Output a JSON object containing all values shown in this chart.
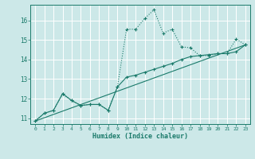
{
  "title": "",
  "xlabel": "Humidex (Indice chaleur)",
  "bg_color": "#cce8e8",
  "grid_color": "#ffffff",
  "line_color": "#1a7a6a",
  "xlim": [
    -0.5,
    23.5
  ],
  "ylim": [
    10.7,
    16.8
  ],
  "xticks": [
    0,
    1,
    2,
    3,
    4,
    5,
    6,
    7,
    8,
    9,
    10,
    11,
    12,
    13,
    14,
    15,
    16,
    17,
    18,
    19,
    20,
    21,
    22,
    23
  ],
  "yticks": [
    11,
    12,
    13,
    14,
    15,
    16
  ],
  "line1_x": [
    0,
    1,
    2,
    3,
    4,
    5,
    6,
    7,
    8,
    9,
    10,
    11,
    12,
    13,
    14,
    15,
    16,
    17,
    18,
    19,
    20,
    21,
    22,
    23
  ],
  "line1_y": [
    10.85,
    11.25,
    11.4,
    12.25,
    11.9,
    11.65,
    11.7,
    11.7,
    11.4,
    12.6,
    15.55,
    15.55,
    16.1,
    16.55,
    15.35,
    15.55,
    14.65,
    14.6,
    14.2,
    14.2,
    14.3,
    14.3,
    15.05,
    14.75
  ],
  "line2_x": [
    0,
    1,
    2,
    3,
    4,
    5,
    6,
    7,
    8,
    9,
    10,
    11,
    12,
    13,
    14,
    15,
    16,
    17,
    18,
    19,
    20,
    21,
    22,
    23
  ],
  "line2_y": [
    10.85,
    11.25,
    11.4,
    12.25,
    11.9,
    11.65,
    11.7,
    11.7,
    11.4,
    12.6,
    13.1,
    13.2,
    13.35,
    13.5,
    13.65,
    13.8,
    14.0,
    14.15,
    14.2,
    14.25,
    14.3,
    14.3,
    14.4,
    14.75
  ],
  "line3_x": [
    0,
    23
  ],
  "line3_y": [
    10.85,
    14.75
  ]
}
